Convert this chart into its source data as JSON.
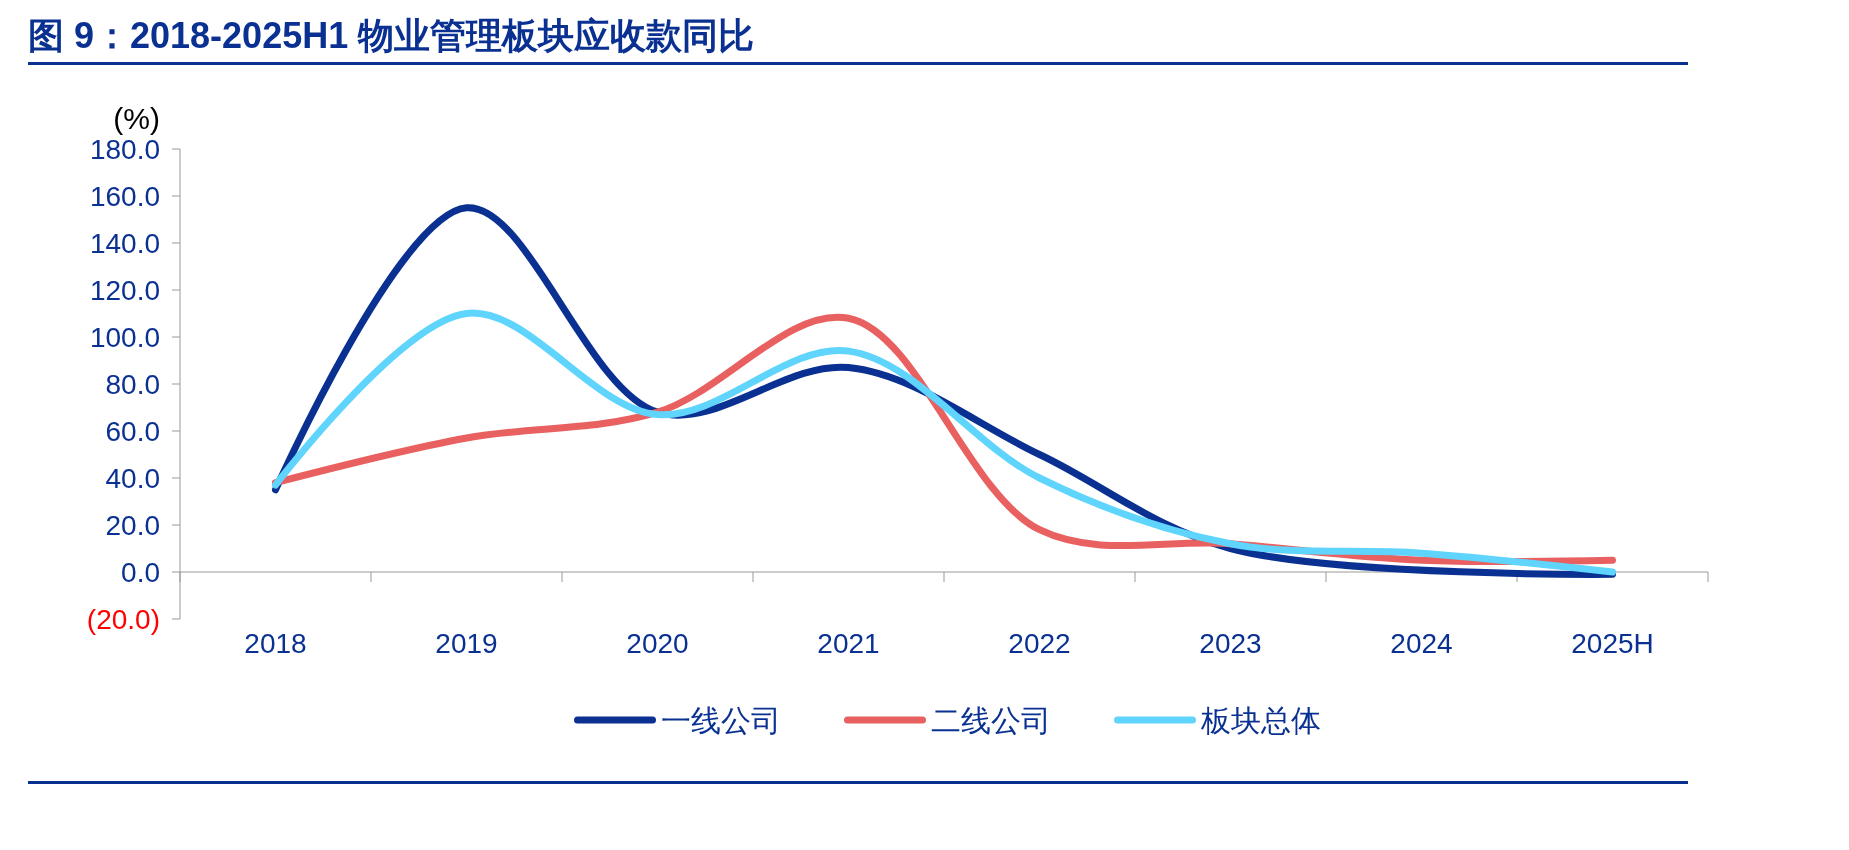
{
  "chart_data": {
    "type": "line",
    "title": "图 9：2018-2025H1 物业管理板块应收款同比",
    "ylabel": "(%)",
    "categories": [
      "2018",
      "2019",
      "2020",
      "2021",
      "2022",
      "2023",
      "2024",
      "2025H"
    ],
    "series": [
      {
        "name": "一线公司",
        "color": "#0a3192",
        "values": [
          35,
          155,
          68,
          87,
          50,
          10,
          null,
          -1
        ]
      },
      {
        "name": "二线公司",
        "color": "#e8605f",
        "values": [
          38,
          57,
          68,
          108,
          18,
          12,
          5,
          5
        ]
      },
      {
        "name": "板块总体",
        "color": "#5fd4fc",
        "values": [
          37,
          110,
          67,
          94,
          40,
          12,
          8,
          0
        ]
      }
    ],
    "ylim": [
      -20,
      180
    ],
    "yticks": [
      {
        "value": -20,
        "label": "(20.0)"
      },
      {
        "value": 0,
        "label": "0.0"
      },
      {
        "value": 20,
        "label": "20.0"
      },
      {
        "value": 40,
        "label": "40.0"
      },
      {
        "value": 60,
        "label": "60.0"
      },
      {
        "value": 80,
        "label": "80.0"
      },
      {
        "value": 100,
        "label": "100.0"
      },
      {
        "value": 120,
        "label": "120.0"
      },
      {
        "value": 140,
        "label": "140.0"
      },
      {
        "value": 160,
        "label": "160.0"
      },
      {
        "value": 180,
        "label": "180.0"
      }
    ],
    "grid": false,
    "legend": "bottom"
  }
}
